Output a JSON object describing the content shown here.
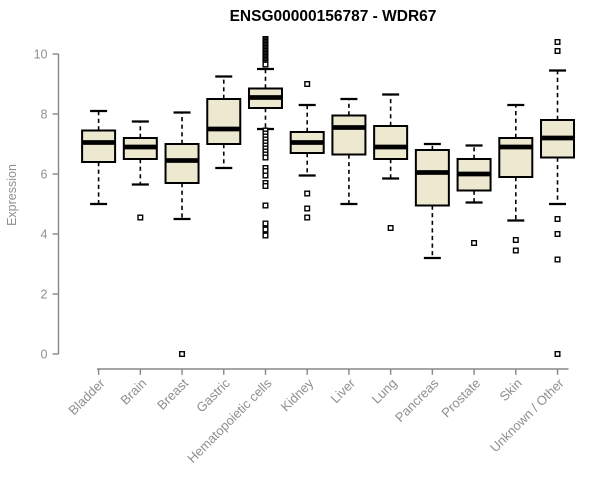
{
  "page": {
    "background_color": "#ffffff"
  },
  "chart_data": {
    "type": "boxplot",
    "title": "ENSG00000156787 - WDR67",
    "ylabel": "Expression",
    "xlabel": "",
    "ylim": [
      0,
      10.6
    ],
    "yticks": [
      0,
      2,
      4,
      6,
      8,
      10
    ],
    "grid": false,
    "legend": "none",
    "colors": {
      "box_fill": "#EDE8D0",
      "box_stroke": "#000000",
      "median": "#000000",
      "axis_line": "#878787",
      "tick_label": "#8f8f8f",
      "title": "#000000",
      "outlier_fill": "#ffffff",
      "outlier_stroke": "#000000"
    },
    "categories": [
      "Bladder",
      "Brain",
      "Breast",
      "Gastric",
      "Hematopoietic cells",
      "Kidney",
      "Liver",
      "Lung",
      "Pancreas",
      "Prostate",
      "Skin",
      "Unknown / Other"
    ],
    "boxes": [
      {
        "category": "Bladder",
        "whisker_low": 5.0,
        "q1": 6.4,
        "median": 7.05,
        "q3": 7.45,
        "whisker_high": 8.1,
        "outliers": []
      },
      {
        "category": "Brain",
        "whisker_low": 5.65,
        "q1": 6.5,
        "median": 6.9,
        "q3": 7.2,
        "whisker_high": 7.75,
        "outliers": [
          4.55
        ]
      },
      {
        "category": "Breast",
        "whisker_low": 4.5,
        "q1": 5.7,
        "median": 6.45,
        "q3": 7.0,
        "whisker_high": 8.05,
        "outliers": [
          0.0
        ]
      },
      {
        "category": "Gastric",
        "whisker_low": 6.2,
        "q1": 7.0,
        "median": 7.5,
        "q3": 8.5,
        "whisker_high": 9.25,
        "outliers": []
      },
      {
        "category": "Hematopoietic cells",
        "whisker_low": 7.5,
        "q1": 8.2,
        "median": 8.55,
        "q3": 8.85,
        "whisker_high": 9.5,
        "outliers": [
          10.5,
          10.45,
          10.4,
          10.35,
          10.3,
          10.25,
          10.2,
          10.15,
          10.1,
          10.05,
          10.0,
          9.95,
          9.9,
          9.85,
          9.8,
          9.75,
          9.7,
          9.65,
          7.45,
          7.35,
          7.25,
          7.15,
          7.05,
          6.95,
          6.85,
          6.75,
          6.65,
          6.55,
          6.2,
          6.1,
          5.95,
          5.7,
          5.6,
          4.95,
          4.35,
          4.15,
          3.95
        ]
      },
      {
        "category": "Kidney",
        "whisker_low": 5.95,
        "q1": 6.7,
        "median": 7.05,
        "q3": 7.4,
        "whisker_high": 8.3,
        "outliers": [
          9.0,
          5.35,
          4.85,
          4.55
        ]
      },
      {
        "category": "Liver",
        "whisker_low": 5.0,
        "q1": 6.65,
        "median": 7.55,
        "q3": 7.95,
        "whisker_high": 8.5,
        "outliers": []
      },
      {
        "category": "Lung",
        "whisker_low": 5.85,
        "q1": 6.5,
        "median": 6.9,
        "q3": 7.6,
        "whisker_high": 8.65,
        "outliers": [
          4.2
        ]
      },
      {
        "category": "Pancreas",
        "whisker_low": 3.2,
        "q1": 4.95,
        "median": 6.05,
        "q3": 6.8,
        "whisker_high": 7.0,
        "outliers": []
      },
      {
        "category": "Prostate",
        "whisker_low": 5.05,
        "q1": 5.45,
        "median": 6.0,
        "q3": 6.5,
        "whisker_high": 6.95,
        "outliers": [
          3.7
        ]
      },
      {
        "category": "Skin",
        "whisker_low": 4.45,
        "q1": 5.9,
        "median": 6.9,
        "q3": 7.2,
        "whisker_high": 8.3,
        "outliers": [
          3.8,
          3.45
        ]
      },
      {
        "category": "Unknown / Other",
        "whisker_low": 5.0,
        "q1": 6.55,
        "median": 7.2,
        "q3": 7.8,
        "whisker_high": 9.45,
        "outliers": [
          10.4,
          10.1,
          4.5,
          4.0,
          3.15,
          0.0
        ]
      }
    ]
  }
}
